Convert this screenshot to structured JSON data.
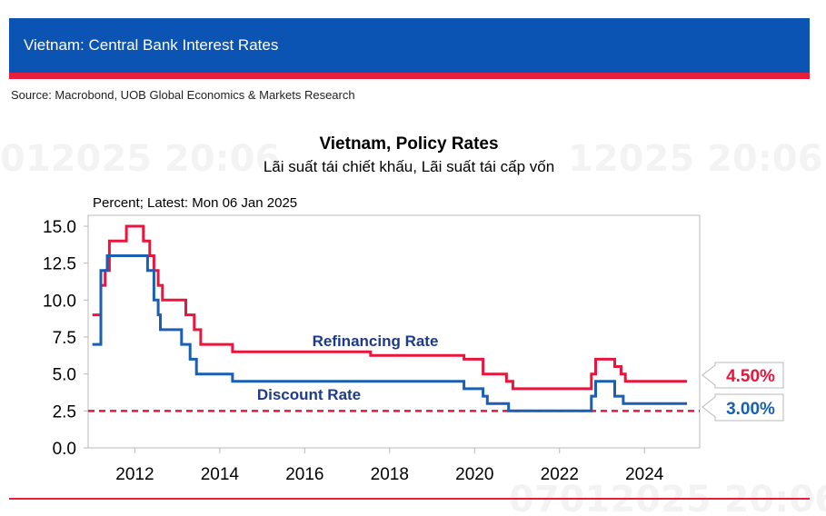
{
  "header": {
    "title": "Vietnam: Central Bank Interest Rates",
    "source": "Source: Macrobond, UOB Global Economics & Markets Research"
  },
  "watermark": {
    "left": "012025 20:06",
    "right": "12025 20:06",
    "bottom": "07012025 20:06"
  },
  "colors": {
    "header_blue": "#0b54b3",
    "accent_red": "#e81e3c",
    "refinancing": "#e8163c",
    "discount": "#1a5fb4",
    "reference_line": "#e8163c"
  },
  "chart_data": {
    "type": "line",
    "title": "Vietnam, Policy Rates",
    "subtitle": "Lãi suất tái chiết khấu, Lãi suất tái cấp vốn",
    "unit_note": "Percent; Latest: Mon 06 Jan 2025",
    "xlim": [
      2010.9,
      2025.3
    ],
    "ylim": [
      0,
      15
    ],
    "x_ticks": [
      2012,
      2014,
      2016,
      2018,
      2020,
      2022,
      2024
    ],
    "x_tick_labels": [
      "2012",
      "2014",
      "2016",
      "2018",
      "2020",
      "2022",
      "2024"
    ],
    "y_ticks": [
      0,
      2.5,
      5,
      7.5,
      10,
      12.5,
      15
    ],
    "y_tick_labels": [
      "0.0",
      "2.5",
      "5.0",
      "7.5",
      "10.0",
      "12.5",
      "15.0"
    ],
    "grid": false,
    "reference_line": {
      "y": 2.5,
      "style": "dashed"
    },
    "series": [
      {
        "name": "Refinancing Rate",
        "step": true,
        "latest_label": "4.50%",
        "points": [
          [
            2011.0,
            9
          ],
          [
            2011.2,
            11
          ],
          [
            2011.3,
            12
          ],
          [
            2011.4,
            14
          ],
          [
            2011.8,
            15
          ],
          [
            2012.2,
            14
          ],
          [
            2012.35,
            13
          ],
          [
            2012.45,
            12
          ],
          [
            2012.55,
            11
          ],
          [
            2012.65,
            10
          ],
          [
            2013.2,
            9
          ],
          [
            2013.4,
            8
          ],
          [
            2013.55,
            7
          ],
          [
            2014.3,
            6.5
          ],
          [
            2017.55,
            6.25
          ],
          [
            2019.75,
            6
          ],
          [
            2020.2,
            5
          ],
          [
            2020.75,
            4.5
          ],
          [
            2020.9,
            4
          ],
          [
            2022.75,
            5
          ],
          [
            2022.85,
            6
          ],
          [
            2023.3,
            5.5
          ],
          [
            2023.45,
            5
          ],
          [
            2023.55,
            4.5
          ],
          [
            2025.0,
            4.5
          ]
        ]
      },
      {
        "name": "Discount Rate",
        "step": true,
        "latest_label": "3.00%",
        "points": [
          [
            2011.0,
            7
          ],
          [
            2011.2,
            12
          ],
          [
            2011.35,
            13
          ],
          [
            2012.3,
            12
          ],
          [
            2012.45,
            10
          ],
          [
            2012.55,
            9
          ],
          [
            2012.6,
            8
          ],
          [
            2013.1,
            7
          ],
          [
            2013.3,
            6
          ],
          [
            2013.45,
            5
          ],
          [
            2014.3,
            4.5
          ],
          [
            2019.75,
            4
          ],
          [
            2020.2,
            3.5
          ],
          [
            2020.3,
            3
          ],
          [
            2020.8,
            2.5
          ],
          [
            2022.75,
            3.5
          ],
          [
            2022.85,
            4.5
          ],
          [
            2023.3,
            3.5
          ],
          [
            2023.5,
            3
          ],
          [
            2025.0,
            3
          ]
        ]
      }
    ]
  }
}
